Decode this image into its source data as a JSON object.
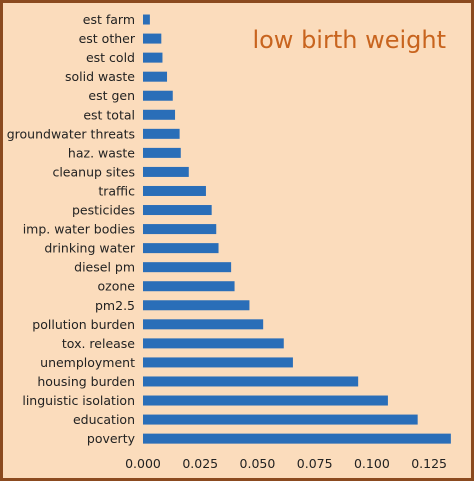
{
  "chart_data": {
    "type": "bar",
    "orientation": "horizontal",
    "title": "low birth weight",
    "xlabel": "",
    "ylabel": "",
    "xlim": [
      0,
      0.135
    ],
    "xticks": [
      "0.000",
      "0.025",
      "0.050",
      "0.075",
      "0.100",
      "0.125"
    ],
    "grid": false,
    "categories": [
      "est farm",
      "est other",
      "est cold",
      "solid waste",
      "est gen",
      "est total",
      "groundwater threats",
      "haz. waste",
      "cleanup sites",
      "traffic",
      "pesticides",
      "imp. water bodies",
      "drinking water",
      "diesel pm",
      "ozone",
      "pm2.5",
      "pollution burden",
      "tox. release",
      "unemployment",
      "housing burden",
      "linguistic isolation",
      "education",
      "poverty"
    ],
    "values": [
      0.003,
      0.008,
      0.0085,
      0.0105,
      0.013,
      0.014,
      0.016,
      0.0165,
      0.02,
      0.0275,
      0.03,
      0.032,
      0.033,
      0.0385,
      0.04,
      0.0465,
      0.0525,
      0.0615,
      0.0655,
      0.094,
      0.107,
      0.12,
      0.1345
    ],
    "colors": {
      "bar": "#2a6eb8",
      "background": "#fbdcbc",
      "frame": "#8b4a1f",
      "title": "#c8641e"
    }
  }
}
